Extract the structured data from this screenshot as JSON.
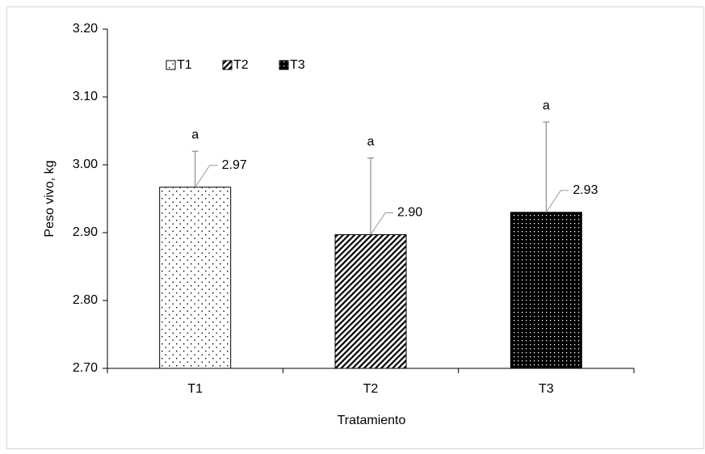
{
  "chart_data": {
    "type": "bar",
    "x_label": "Tratamiento",
    "y_label": "Peso vivo, kg",
    "categories": [
      "T1",
      "T2",
      "T3"
    ],
    "values": [
      2.967,
      2.897,
      2.93
    ],
    "value_labels": [
      "2.97",
      "2.90",
      "2.93"
    ],
    "errors": [
      0.053,
      0.113,
      0.133
    ],
    "significance_labels": [
      "a",
      "a",
      "a"
    ],
    "fills": [
      "dots",
      "hatch",
      "dense-dots"
    ],
    "ylim": [
      2.7,
      3.2
    ],
    "yticks": [
      {
        "value": 2.7,
        "label": "2.70"
      },
      {
        "value": 2.8,
        "label": "2.80"
      },
      {
        "value": 2.9,
        "label": "2.90"
      },
      {
        "value": 3.0,
        "label": "3.00"
      },
      {
        "value": 3.1,
        "label": "3.10"
      },
      {
        "value": 3.2,
        "label": "3.20"
      }
    ],
    "legend": "top-left"
  }
}
